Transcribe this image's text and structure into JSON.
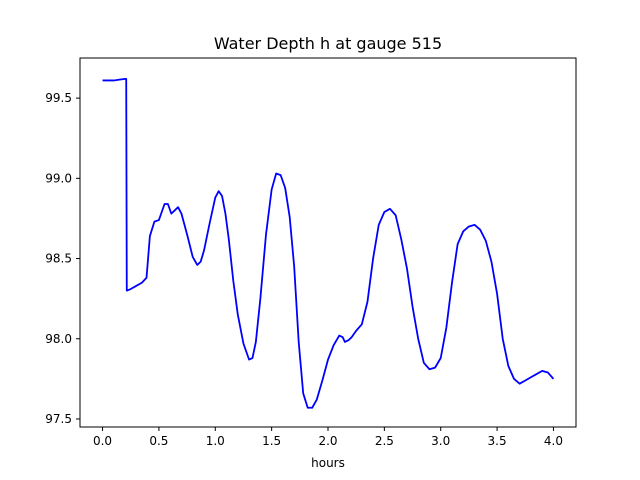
{
  "chart_data": {
    "type": "line",
    "title": "Water Depth h at gauge 515",
    "xlabel": "hours",
    "ylabel": "",
    "xlim": [
      -0.2,
      4.2
    ],
    "ylim": [
      97.45,
      99.75
    ],
    "x_ticks": [
      0.0,
      0.5,
      1.0,
      1.5,
      2.0,
      2.5,
      3.0,
      3.5,
      4.0
    ],
    "x_tick_labels": [
      "0.0",
      "0.5",
      "1.0",
      "1.5",
      "2.0",
      "2.5",
      "3.0",
      "3.5",
      "4.0"
    ],
    "y_ticks": [
      97.5,
      98.0,
      98.5,
      99.0,
      99.5
    ],
    "y_tick_labels": [
      "97.5",
      "98.0",
      "98.5",
      "99.0",
      "99.5"
    ],
    "grid": false,
    "legend": "none",
    "series": [
      {
        "color": "#0000ff",
        "x": [
          0.0,
          0.05,
          0.1,
          0.15,
          0.2,
          0.21,
          0.215,
          0.25,
          0.3,
          0.35,
          0.39,
          0.42,
          0.46,
          0.5,
          0.52,
          0.55,
          0.58,
          0.61,
          0.64,
          0.67,
          0.7,
          0.75,
          0.8,
          0.84,
          0.87,
          0.9,
          0.95,
          1.0,
          1.03,
          1.06,
          1.09,
          1.12,
          1.16,
          1.2,
          1.25,
          1.3,
          1.33,
          1.36,
          1.4,
          1.45,
          1.5,
          1.54,
          1.58,
          1.62,
          1.66,
          1.7,
          1.74,
          1.78,
          1.82,
          1.86,
          1.9,
          1.95,
          2.0,
          2.05,
          2.1,
          2.13,
          2.15,
          2.18,
          2.21,
          2.25,
          2.3,
          2.35,
          2.4,
          2.45,
          2.5,
          2.55,
          2.6,
          2.65,
          2.7,
          2.75,
          2.8,
          2.85,
          2.9,
          2.95,
          3.0,
          3.05,
          3.1,
          3.15,
          3.2,
          3.25,
          3.3,
          3.35,
          3.4,
          3.45,
          3.5,
          3.55,
          3.6,
          3.65,
          3.7,
          3.75,
          3.8,
          3.85,
          3.9,
          3.95,
          4.0
        ],
        "y": [
          99.61,
          99.61,
          99.61,
          99.615,
          99.62,
          99.62,
          98.3,
          98.31,
          98.33,
          98.35,
          98.38,
          98.64,
          98.73,
          98.74,
          98.78,
          98.84,
          98.84,
          98.78,
          98.8,
          98.82,
          98.78,
          98.65,
          98.51,
          98.46,
          98.48,
          98.55,
          98.72,
          98.88,
          98.92,
          98.89,
          98.78,
          98.62,
          98.36,
          98.15,
          97.97,
          97.87,
          97.88,
          97.98,
          98.25,
          98.65,
          98.93,
          99.03,
          99.02,
          98.94,
          98.76,
          98.45,
          97.98,
          97.66,
          97.57,
          97.57,
          97.62,
          97.74,
          97.87,
          97.96,
          98.02,
          98.01,
          97.98,
          97.99,
          98.01,
          98.05,
          98.09,
          98.23,
          98.5,
          98.71,
          98.79,
          98.81,
          98.77,
          98.62,
          98.44,
          98.2,
          98.0,
          97.85,
          97.81,
          97.82,
          97.88,
          98.07,
          98.35,
          98.59,
          98.67,
          98.7,
          98.71,
          98.68,
          98.61,
          98.48,
          98.28,
          98.0,
          97.83,
          97.75,
          97.72,
          97.74,
          97.76,
          97.78,
          97.8,
          97.79,
          97.75
        ]
      }
    ]
  }
}
